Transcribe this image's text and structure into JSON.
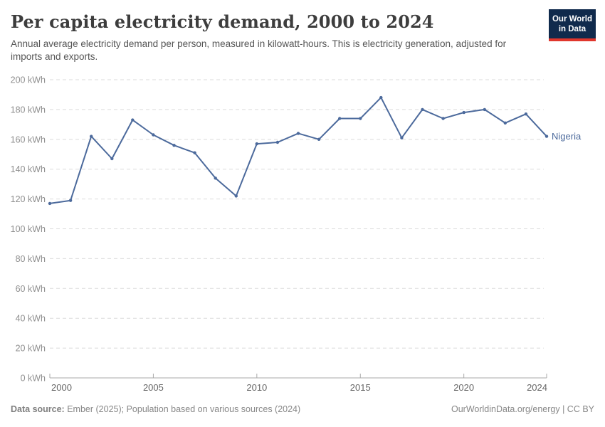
{
  "header": {
    "title": "Per capita electricity demand, 2000 to 2024",
    "subtitle": "Annual average electricity demand per person, measured in kilowatt-hours. This is electricity generation, adjusted for imports and exports.",
    "logo": {
      "line1": "Our World",
      "line2": "in Data",
      "bg_color": "#102A4C",
      "stripe_color": "#E0362C"
    }
  },
  "chart_data": {
    "type": "line",
    "title": "Per capita electricity demand, 2000 to 2024",
    "xlabel": "",
    "ylabel": "",
    "xlim": [
      2000,
      2024
    ],
    "ylim": [
      0,
      200
    ],
    "grid": true,
    "grid_style": "dashed",
    "legend_position": "end-of-line-label",
    "x_ticks": [
      2000,
      2005,
      2010,
      2015,
      2020,
      2024
    ],
    "y_ticks": [
      0,
      20,
      40,
      60,
      80,
      100,
      120,
      140,
      160,
      180,
      200
    ],
    "y_tick_labels": [
      "0 kWh",
      "20 kWh",
      "40 kWh",
      "60 kWh",
      "80 kWh",
      "100 kWh",
      "120 kWh",
      "140 kWh",
      "160 kWh",
      "180 kWh",
      "200 kWh"
    ],
    "series": [
      {
        "name": "Nigeria",
        "color": "#4C6A9C",
        "x": [
          2000,
          2001,
          2002,
          2003,
          2004,
          2005,
          2006,
          2007,
          2008,
          2009,
          2010,
          2011,
          2012,
          2013,
          2014,
          2015,
          2016,
          2017,
          2018,
          2019,
          2020,
          2021,
          2022,
          2023,
          2024
        ],
        "values": [
          117,
          119,
          162,
          147,
          173,
          163,
          156,
          151,
          134,
          122,
          157,
          158,
          164,
          160,
          174,
          174,
          188,
          161,
          180,
          174,
          178,
          180,
          171,
          177,
          162
        ]
      }
    ],
    "colors": {
      "gridline": "#DBDBDB",
      "axis": "#A9A9A9",
      "y_tick_label": "#8F8F8F",
      "x_tick_label": "#666666"
    }
  },
  "footer": {
    "source_label": "Data source:",
    "source_text": " Ember (2025); Population based on various sources (2024)",
    "credit": "OurWorldinData.org/energy | CC BY"
  }
}
